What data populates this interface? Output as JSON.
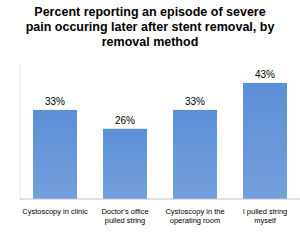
{
  "chart_data": {
    "type": "bar",
    "title": "Percent reporting an episode of severe pain occuring later after stent removal, by removal method",
    "categories": [
      "Cystoscopy in clinic",
      "Doctor's office pulled string",
      "Cystoscopy in the operating room",
      "I pulled string myself"
    ],
    "values": [
      33,
      26,
      33,
      43
    ],
    "value_labels": [
      "33%",
      "26%",
      "33%",
      "43%"
    ],
    "color": "#5b8fd6",
    "ylim": [
      0,
      50
    ],
    "data_labels": true,
    "tick_labels": "x",
    "grid": false
  }
}
